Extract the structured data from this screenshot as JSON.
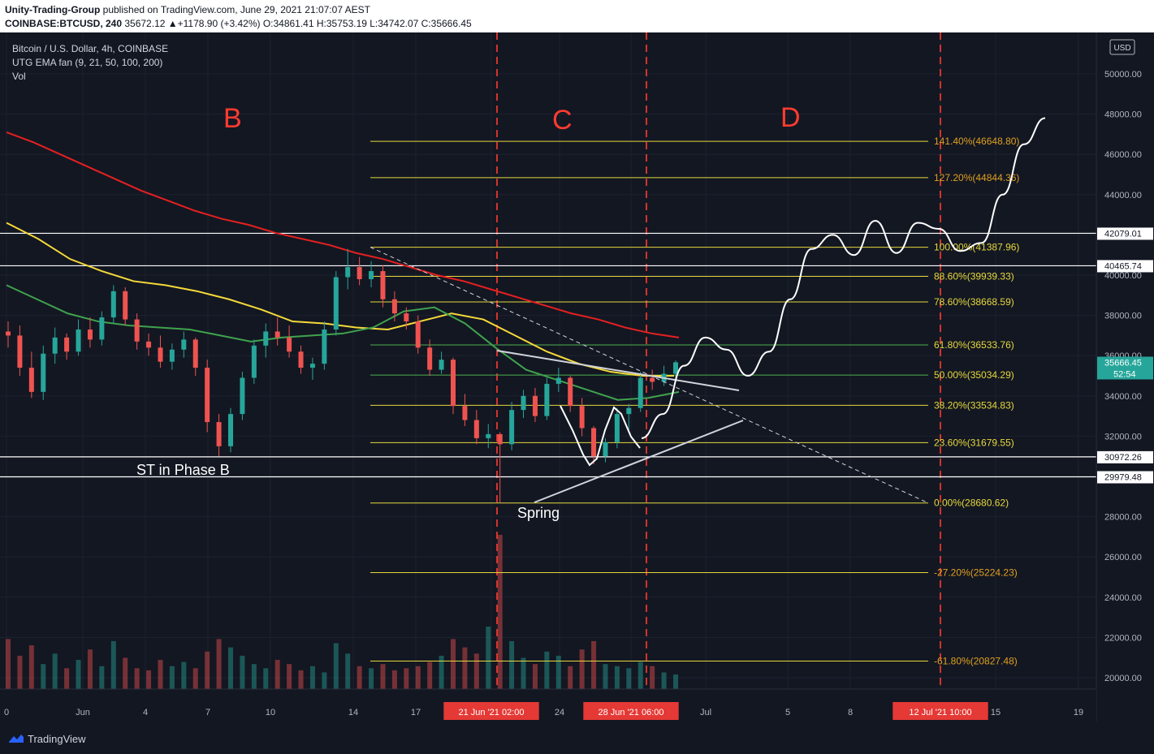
{
  "header": {
    "author": "Unity-Trading-Group",
    "published": " published on TradingView.com, June 29, 2021 21:07:07 AEST",
    "symbol": "COINBASE:BTCUSD, 240",
    "quote": " 35672.12 ▲+1178.90 (+3.42%) O:34861.41 H:35753.19 L:34742.07 C:35666.45"
  },
  "legend": {
    "title": "Bitcoin / U.S. Dollar, 4h, COINBASE",
    "indicator": "UTG EMA fan (9, 21, 50, 100, 200)",
    "volume": "Vol"
  },
  "currency": "USD",
  "footer_brand": "TradingView",
  "colors": {
    "background": "#131722",
    "up": "#26a69a",
    "down": "#ef5350",
    "ema200": "#e52020",
    "ema100": "#f5d93a",
    "ema50": "#3fa34d",
    "fib": "#e6d83c",
    "fib_green": "#4caf50",
    "annotation": "#ff3b30",
    "text": "#b2b5be"
  },
  "chart_data": {
    "type": "candlestick",
    "price_axis": {
      "ylim": [
        19000,
        51000
      ],
      "ticks": [
        "50000.00",
        "48000.00",
        "46000.00",
        "44000.00",
        "42000.00",
        "40000.00",
        "38000.00",
        "36000.00",
        "34000.00",
        "32000.00",
        "30000.00",
        "28000.00",
        "26000.00",
        "24000.00",
        "22000.00",
        "20000.00"
      ]
    },
    "x_axis": {
      "ticks": [
        "0",
        "Jun",
        "4",
        "7",
        "10",
        "14",
        "17",
        "21 Jun '21  02:00",
        "24",
        "28 Jun '21  06:00",
        "Jul",
        "5",
        "8",
        "12 Jul '21  10:00",
        "15",
        "19"
      ]
    },
    "price_labels": [
      {
        "value": 42079.01,
        "text": "42079.01"
      },
      {
        "value": 40465.74,
        "text": "40465.74"
      },
      {
        "value": 35666.45,
        "text": "35666.45",
        "sub": "52:54"
      },
      {
        "value": 30972.26,
        "text": "30972.26"
      },
      {
        "value": 29979.48,
        "text": "29979.48"
      }
    ],
    "fib_levels": [
      {
        "ratio": "141.40%",
        "price": 46648.8,
        "label": "141.40%(46648.80)"
      },
      {
        "ratio": "127.20%",
        "price": 44844.36,
        "label": "127.20%(44844.36)"
      },
      {
        "ratio": "100.00%",
        "price": 41387.96,
        "label": "100.00%(41387.96)"
      },
      {
        "ratio": "88.60%",
        "price": 39939.33,
        "label": "88.60%(39939.33)"
      },
      {
        "ratio": "78.60%",
        "price": 38668.59,
        "label": "78.60%(38668.59)"
      },
      {
        "ratio": "61.80%",
        "price": 36533.76,
        "label": "61.80%(36533.76)"
      },
      {
        "ratio": "50.00%",
        "price": 35034.29,
        "label": "50.00%(35034.29)"
      },
      {
        "ratio": "38.20%",
        "price": 33534.83,
        "label": "38.20%(33534.83)"
      },
      {
        "ratio": "23.60%",
        "price": 31679.55,
        "label": "23.60%(31679.55)"
      },
      {
        "ratio": "0.00%",
        "price": 28680.62,
        "label": "0.00%(28680.62)"
      },
      {
        "ratio": "-27.20%",
        "price": 25224.23,
        "label": "-27.20%(25224.23)"
      },
      {
        "ratio": "-61.80%",
        "price": 20827.48,
        "label": "-61.80%(20827.48)"
      }
    ],
    "horizontal_levels": [
      42079.01,
      40465.74,
      30972.26,
      29979.48
    ],
    "phase_labels": [
      "B",
      "C",
      "D"
    ],
    "annotations": [
      "ST in Phase B",
      "Spring"
    ],
    "ema_series": [
      {
        "period": 200,
        "values": [
          47100,
          46600,
          46000,
          45400,
          44800,
          44200,
          43700,
          43200,
          42800,
          42500,
          42100,
          41800,
          41500,
          41100,
          40800,
          40400,
          40000,
          39700,
          39300,
          38900,
          38500,
          38100,
          37800,
          37400,
          37100,
          36900
        ]
      },
      {
        "period": 100,
        "values": [
          42600,
          41800,
          40800,
          40200,
          39700,
          39500,
          39200,
          38800,
          38300,
          37700,
          37600,
          37400,
          37300,
          37700,
          38100,
          37800,
          37000,
          36200,
          35600,
          35200,
          35000,
          35000
        ]
      },
      {
        "period": 50,
        "values": [
          39500,
          38800,
          38100,
          37700,
          37500,
          37400,
          37300,
          37000,
          36700,
          36900,
          37000,
          37100,
          37400,
          38200,
          38400,
          37600,
          36400,
          35300,
          34800,
          34300,
          33800,
          33900,
          34200
        ]
      }
    ],
    "candles": [
      [
        37200,
        37700,
        36400,
        37000
      ],
      [
        37000,
        37500,
        35000,
        35400
      ],
      [
        35400,
        36200,
        33900,
        34200
      ],
      [
        34200,
        36500,
        33800,
        36100
      ],
      [
        36100,
        37400,
        35600,
        36900
      ],
      [
        36900,
        37100,
        35800,
        36200
      ],
      [
        36200,
        37800,
        36000,
        37300
      ],
      [
        37300,
        37900,
        36400,
        36800
      ],
      [
        36800,
        38200,
        36500,
        37900
      ],
      [
        37900,
        39500,
        37600,
        39200
      ],
      [
        39200,
        39400,
        37500,
        37800
      ],
      [
        37800,
        38100,
        36300,
        36700
      ],
      [
        36700,
        37100,
        36000,
        36400
      ],
      [
        36400,
        37000,
        35400,
        35700
      ],
      [
        35700,
        36600,
        35300,
        36300
      ],
      [
        36300,
        37200,
        35900,
        36800
      ],
      [
        36800,
        36900,
        35000,
        35400
      ],
      [
        35400,
        35800,
        32200,
        32700
      ],
      [
        32700,
        33100,
        31000,
        31500
      ],
      [
        31500,
        33400,
        31200,
        33100
      ],
      [
        33100,
        35200,
        32800,
        34900
      ],
      [
        34900,
        36800,
        34600,
        36500
      ],
      [
        36500,
        37600,
        35900,
        37200
      ],
      [
        37200,
        37900,
        36500,
        36900
      ],
      [
        36900,
        37500,
        35900,
        36200
      ],
      [
        36200,
        36500,
        35100,
        35400
      ],
      [
        35400,
        35900,
        34800,
        35600
      ],
      [
        35600,
        37700,
        35300,
        37300
      ],
      [
        37300,
        40200,
        37000,
        39900
      ],
      [
        39900,
        41300,
        39300,
        40400
      ],
      [
        40400,
        40900,
        39500,
        39800
      ],
      [
        39800,
        40700,
        39400,
        40200
      ],
      [
        40200,
        40500,
        38400,
        38800
      ],
      [
        38800,
        39200,
        37700,
        38100
      ],
      [
        38100,
        38400,
        37300,
        37700
      ],
      [
        37700,
        38000,
        36100,
        36400
      ],
      [
        36400,
        36800,
        35000,
        35300
      ],
      [
        35300,
        36200,
        35100,
        35800
      ],
      [
        35800,
        35900,
        33100,
        33500
      ],
      [
        33500,
        34100,
        32500,
        32800
      ],
      [
        32800,
        33300,
        31600,
        31900
      ],
      [
        31900,
        32600,
        31400,
        32100
      ],
      [
        32100,
        32200,
        28700,
        31600
      ],
      [
        31600,
        33700,
        31300,
        33300
      ],
      [
        33300,
        34300,
        32900,
        34000
      ],
      [
        34000,
        34400,
        32700,
        33000
      ],
      [
        33000,
        34900,
        32800,
        34600
      ],
      [
        34600,
        35400,
        34200,
        34900
      ],
      [
        34900,
        35000,
        33200,
        33500
      ],
      [
        33500,
        33900,
        32000,
        32400
      ],
      [
        32400,
        32500,
        30600,
        31000
      ],
      [
        31000,
        31900,
        30700,
        31700
      ],
      [
        31700,
        33400,
        31400,
        33100
      ],
      [
        33100,
        33600,
        32300,
        33400
      ],
      [
        33400,
        35200,
        33200,
        34900
      ],
      [
        34900,
        35300,
        34300,
        34700
      ],
      [
        34700,
        35500,
        34500,
        35100
      ],
      [
        35100,
        35760,
        34740,
        35670
      ]
    ],
    "volume": [
      22000,
      21200,
      21700,
      20800,
      21300,
      20600,
      21000,
      21500,
      20700,
      21900,
      21100,
      20600,
      20500,
      21000,
      20700,
      20900,
      20600,
      21400,
      22000,
      21600,
      21200,
      20800,
      20600,
      21000,
      20800,
      20500,
      20700,
      20400,
      21800,
      21300,
      20700,
      20600,
      20800,
      20500,
      20600,
      20700,
      20900,
      21200,
      22000,
      21600,
      21300,
      22600,
      27000,
      21900,
      21100,
      20800,
      21400,
      21200,
      20700,
      21500,
      21900,
      20800,
      20700,
      20600,
      20900,
      20700,
      20400,
      20300
    ],
    "projection_path": [
      [
        0,
        31900
      ],
      [
        1,
        33100
      ],
      [
        2,
        35500
      ],
      [
        3,
        36900
      ],
      [
        4,
        36300
      ],
      [
        5,
        35000
      ],
      [
        6,
        36200
      ],
      [
        7,
        38800
      ],
      [
        8,
        41300
      ],
      [
        9,
        42000
      ],
      [
        10,
        41000
      ],
      [
        11,
        42700
      ],
      [
        12,
        41100
      ],
      [
        13,
        42600
      ],
      [
        14,
        42300
      ],
      [
        15,
        41200
      ],
      [
        16,
        41600
      ],
      [
        17,
        44000
      ],
      [
        18,
        46500
      ],
      [
        19,
        47800
      ]
    ]
  }
}
